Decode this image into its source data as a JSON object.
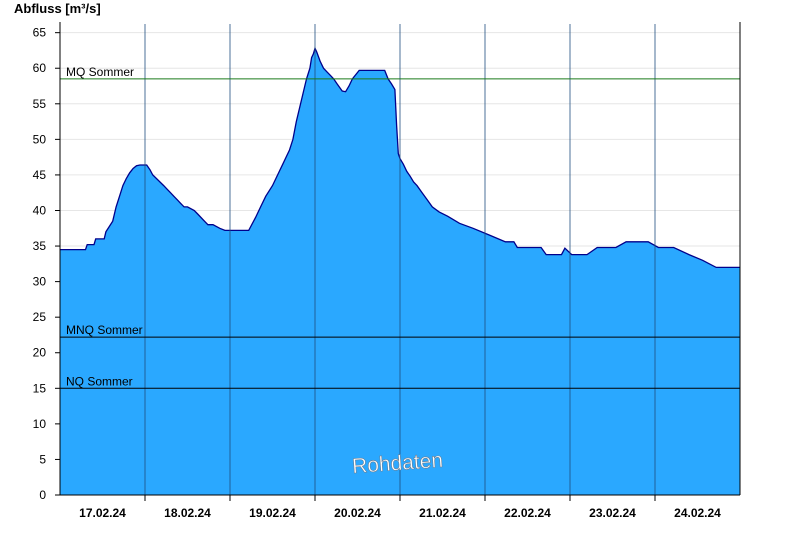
{
  "chart_data": {
    "type": "area",
    "ylabel": "Abfluss [m³/s]",
    "watermark": "Rohdaten",
    "ylim": [
      0,
      66.5
    ],
    "yticks": [
      0,
      5,
      10,
      15,
      20,
      25,
      30,
      35,
      40,
      45,
      50,
      55,
      60,
      65
    ],
    "xlim_days": [
      0,
      8
    ],
    "day_labels": [
      "17.02.24",
      "18.02.24",
      "19.02.24",
      "20.02.24",
      "21.02.24",
      "22.02.24",
      "23.02.24",
      "24.02.24"
    ],
    "fill_color": "#2aa8ff",
    "line_color": "#00008b",
    "reference_lines": [
      {
        "label": "MQ Sommer",
        "value": 58.5,
        "color": "#1a7a1a"
      },
      {
        "label": "MNQ Sommer",
        "value": 22.2,
        "color": "#000000"
      },
      {
        "label": "NQ Sommer",
        "value": 15.0,
        "color": "#000000"
      }
    ],
    "series": [
      {
        "x_days": [
          0.0,
          0.3,
          0.32,
          0.4,
          0.42,
          0.52,
          0.54,
          0.62,
          0.66,
          0.7,
          0.74,
          0.78,
          0.82,
          0.86,
          0.9,
          0.94,
          0.98,
          1.02,
          1.06,
          1.09,
          1.22,
          1.26,
          1.3,
          1.34,
          1.38,
          1.42,
          1.46,
          1.5,
          1.58,
          1.62,
          1.7,
          1.74,
          1.8,
          1.88,
          1.94,
          2.12,
          2.22,
          2.3,
          2.36,
          2.42,
          2.5,
          2.54,
          2.58,
          2.62,
          2.66,
          2.7,
          2.74,
          2.78,
          2.82,
          2.86,
          2.9,
          2.94,
          2.96,
          2.98,
          3.0,
          3.02,
          3.06,
          3.1,
          3.14,
          3.18,
          3.22,
          3.26,
          3.32,
          3.36,
          3.4,
          3.44,
          3.52,
          3.6,
          3.7,
          3.82,
          3.86,
          3.9,
          3.94,
          3.96,
          3.98,
          4.0,
          4.04,
          4.08,
          4.12,
          4.16,
          4.2,
          4.26,
          4.32,
          4.38,
          4.46,
          4.56,
          4.7,
          4.86,
          5.06,
          5.24,
          5.3,
          5.34,
          5.38,
          5.42,
          5.48,
          5.56,
          5.66,
          5.72,
          5.9,
          5.94,
          6.02,
          6.2,
          6.32,
          6.54,
          6.66,
          6.8,
          6.92,
          7.04,
          7.22,
          7.4,
          7.56,
          7.72,
          8.0
        ],
        "values": [
          34.5,
          34.5,
          35.2,
          35.2,
          36.0,
          36.0,
          37.0,
          38.5,
          40.5,
          42.0,
          43.5,
          44.5,
          45.3,
          45.9,
          46.3,
          46.4,
          46.4,
          46.4,
          45.7,
          45.0,
          43.5,
          43.0,
          42.5,
          42.0,
          41.5,
          41.0,
          40.5,
          40.5,
          40.0,
          39.5,
          38.5,
          38.0,
          38.0,
          37.5,
          37.2,
          37.2,
          37.2,
          39.0,
          40.5,
          42.0,
          43.5,
          44.5,
          45.5,
          46.5,
          47.5,
          48.5,
          50.0,
          52.5,
          54.5,
          56.5,
          58.5,
          60.0,
          61.5,
          62.0,
          62.8,
          62.3,
          61.0,
          60.0,
          59.5,
          59.0,
          58.5,
          57.8,
          56.8,
          56.7,
          57.5,
          58.5,
          59.7,
          59.7,
          59.7,
          59.7,
          58.5,
          57.8,
          57.0,
          52.0,
          48.0,
          47.3,
          46.5,
          45.5,
          44.8,
          44.0,
          43.5,
          42.5,
          41.5,
          40.5,
          39.8,
          39.2,
          38.2,
          37.5,
          36.5,
          35.6,
          35.6,
          35.6,
          34.8,
          34.8,
          34.8,
          34.8,
          34.8,
          33.8,
          33.8,
          34.7,
          33.8,
          33.8,
          34.8,
          34.8,
          35.6,
          35.6,
          35.6,
          34.8,
          34.8,
          33.8,
          33.0,
          32.0,
          32.0
        ]
      }
    ]
  }
}
